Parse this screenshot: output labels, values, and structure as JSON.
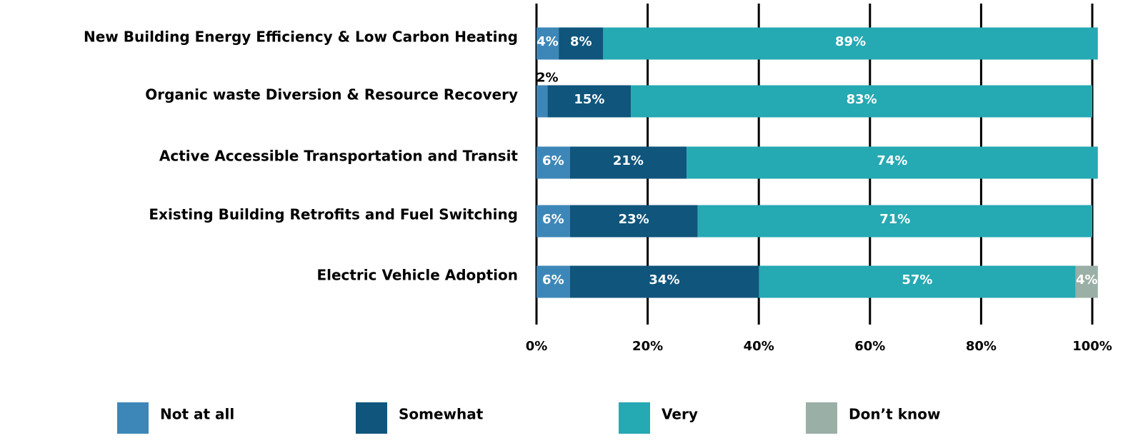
{
  "chart_data": {
    "type": "bar",
    "orientation": "horizontal",
    "stacked": true,
    "categories": [
      "New Building Energy Efficiency & Low Carbon Heating",
      "Organic waste Diversion & Resource Recovery",
      "Active Accessible Transportation and Transit",
      "Existing Building Retrofits and Fuel Switching",
      "Electric Vehicle Adoption"
    ],
    "series": [
      {
        "name": "Not at all",
        "color": "#3d87b8",
        "values": [
          4,
          2,
          6,
          6,
          6
        ],
        "value_labels": [
          "4%",
          "2%",
          "6%",
          "6%",
          "6%"
        ]
      },
      {
        "name": "Somewhat",
        "color": "#0f557c",
        "values": [
          8,
          15,
          21,
          23,
          34
        ],
        "value_labels": [
          "8%",
          "15%",
          "21%",
          "23%",
          "34%"
        ]
      },
      {
        "name": "Very",
        "color": "#25a9b3",
        "values": [
          89,
          83,
          74,
          71,
          57
        ],
        "value_labels": [
          "89%",
          "83%",
          "74%",
          "71%",
          "57%"
        ]
      },
      {
        "name": "Don’t know",
        "color": "#9aafa6",
        "values": [
          null,
          null,
          null,
          null,
          4
        ],
        "value_labels": [
          null,
          null,
          null,
          null,
          "4%"
        ]
      }
    ],
    "xlim": [
      0,
      100
    ],
    "xticks": [
      {
        "value": 0,
        "label": "0%"
      },
      {
        "value": 20,
        "label": "20%"
      },
      {
        "value": 40,
        "label": "40%"
      },
      {
        "value": 60,
        "label": "60%"
      },
      {
        "value": 80,
        "label": "80%"
      },
      {
        "value": 100,
        "label": "100%"
      }
    ],
    "grid": true,
    "legend": "bottom"
  }
}
